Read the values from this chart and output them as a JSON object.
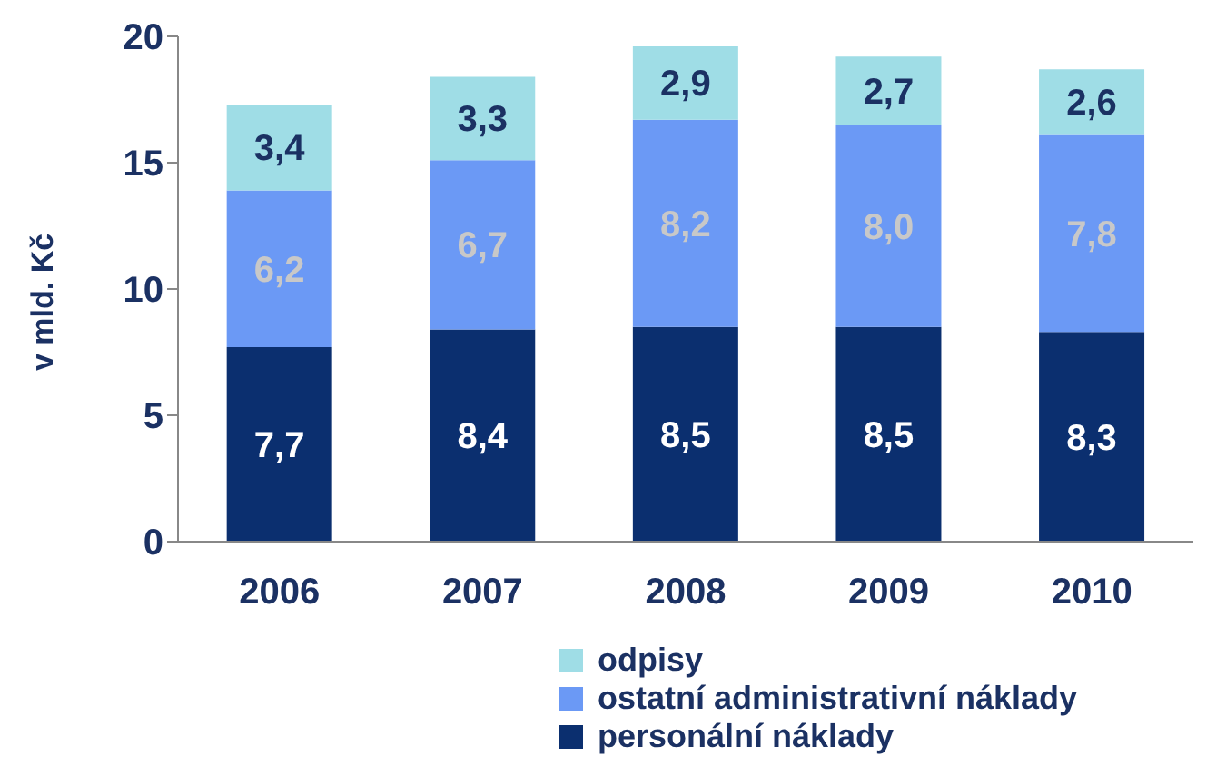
{
  "chart_data": {
    "type": "bar",
    "stacked": true,
    "ylabel": "v mld. Kč",
    "categories": [
      "2006",
      "2007",
      "2008",
      "2009",
      "2010"
    ],
    "series": [
      {
        "name": "personální náklady",
        "color": "#0b2f6f",
        "values": [
          7.7,
          8.4,
          8.5,
          8.5,
          8.3
        ],
        "value_labels": [
          "7,7",
          "8,4",
          "8,5",
          "8,5",
          "8,3"
        ]
      },
      {
        "name": "ostatní administrativní náklady",
        "color": "#6b99f5",
        "values": [
          6.2,
          6.7,
          8.2,
          8.0,
          7.8
        ],
        "value_labels": [
          "6,2",
          "6,7",
          "8,2",
          "8,0",
          "7,8"
        ]
      },
      {
        "name": "odpisy",
        "color": "#9fdde6",
        "values": [
          3.4,
          3.3,
          2.9,
          2.7,
          2.6
        ],
        "value_labels": [
          "3,4",
          "3,3",
          "2,9",
          "2,7",
          "2,6"
        ]
      }
    ],
    "ylim": [
      0,
      20
    ],
    "yticks": [
      0,
      5,
      10,
      15,
      20
    ],
    "grid": false,
    "legend": "bottom"
  }
}
